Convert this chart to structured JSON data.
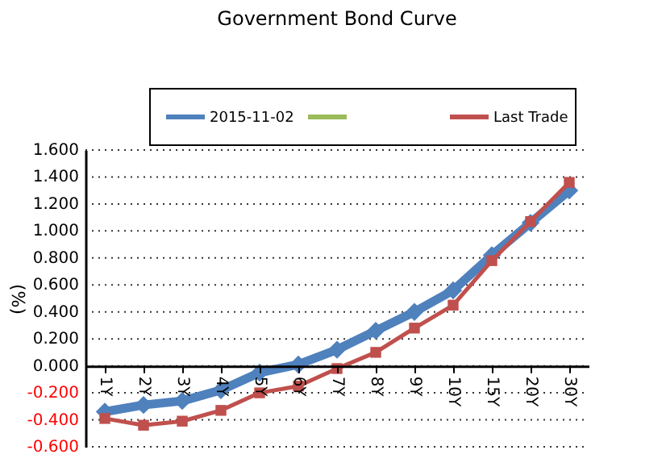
{
  "chart_data": {
    "type": "line",
    "title": "Government Bond Curve",
    "ylabel": "(%)",
    "categories": [
      "1Y",
      "2Y",
      "3Y",
      "4Y",
      "5Y",
      "6Y",
      "7Y",
      "8Y",
      "9Y",
      "10Y",
      "15Y",
      "20Y",
      "30Y"
    ],
    "series": [
      {
        "name": "2015-11-02",
        "color": "#4f81bd",
        "marker": "diamond",
        "values": [
          -0.34,
          -0.29,
          -0.26,
          -0.18,
          -0.05,
          0.01,
          0.12,
          0.26,
          0.4,
          0.56,
          0.82,
          1.06,
          1.3
        ]
      },
      {
        "color": "#9bbb59",
        "marker": "triangle",
        "values": [
          null,
          null,
          null,
          null,
          null,
          null,
          null,
          null,
          null,
          null,
          null,
          null,
          null
        ]
      },
      {
        "name": "Last Trade",
        "color": "#c0504d",
        "marker": "square",
        "values": [
          -0.39,
          -0.44,
          -0.41,
          -0.33,
          -0.2,
          -0.15,
          -0.02,
          0.1,
          0.28,
          0.45,
          0.78,
          1.07,
          1.36
        ]
      }
    ],
    "ylim": [
      -0.6,
      1.6
    ],
    "yticks": [
      {
        "value": -0.6,
        "label": "-0.600"
      },
      {
        "value": -0.4,
        "label": "-0.400"
      },
      {
        "value": -0.2,
        "label": "-0.200"
      },
      {
        "value": 0,
        "label": "0.000"
      },
      {
        "value": 0.2,
        "label": "0.200"
      },
      {
        "value": 0.4,
        "label": "0.400"
      },
      {
        "value": 0.6,
        "label": "0.600"
      },
      {
        "value": 0.8,
        "label": "0.800"
      },
      {
        "value": 1.0,
        "label": "1.000"
      },
      {
        "value": 1.2,
        "label": "1.200"
      },
      {
        "value": 1.4,
        "label": "1.400"
      },
      {
        "value": 1.6,
        "label": "1.600"
      }
    ],
    "grid": "y",
    "legend": "top",
    "line_style": "solid"
  }
}
